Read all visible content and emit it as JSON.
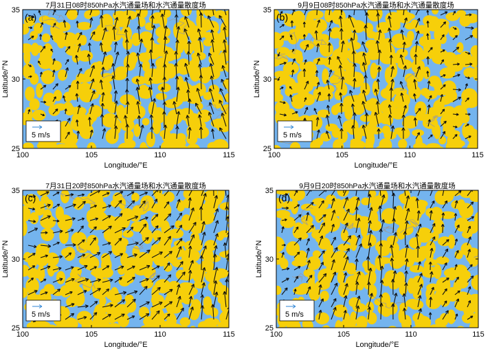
{
  "colors": {
    "land": "#f6cf0a",
    "water": "#74b4ee",
    "arrow": "#101010",
    "boundary": "#9a9a9a",
    "ref_arrow": "#2f86d6"
  },
  "chart_data": [
    {
      "type": "quiver",
      "panel_label": "(a)",
      "title": "7月31日08时850hPa水汽通量场和水汽通量散度场",
      "xlabel": "Longitude/°E",
      "ylabel": "Latitude/°N",
      "xlim": [
        100,
        115
      ],
      "ylim": [
        25,
        35
      ],
      "xticks": [
        100,
        105,
        110,
        115
      ],
      "yticks": [
        25,
        30,
        35
      ],
      "reference_vector": "5 m/s",
      "seed": 11,
      "flow": [
        {
          "x": 100,
          "u": 0.15,
          "v": 0.0
        },
        {
          "x": 106,
          "u": 0.1,
          "v": 0.9
        },
        {
          "x": 111,
          "u": 0.0,
          "v": 1.2
        },
        {
          "x": 113.5,
          "u": -0.35,
          "v": 1.0
        }
      ]
    },
    {
      "type": "quiver",
      "panel_label": "(b)",
      "title": "9月9日08时850hPa水汽通量场和水汽通量散度场",
      "xlabel": "Longitude/°E",
      "ylabel": "Latitude/°N",
      "xlim": [
        100,
        115
      ],
      "ylim": [
        25,
        35
      ],
      "xticks": [
        100,
        105,
        110,
        115
      ],
      "yticks": [
        25,
        30,
        35
      ],
      "reference_vector": "5 m/s",
      "seed": 23,
      "flow": [
        {
          "x": 100,
          "u": 0.2,
          "v": 0.0
        },
        {
          "x": 106.5,
          "u": -0.2,
          "v": 1.1
        },
        {
          "x": 109,
          "u": 0.0,
          "v": 0.9
        },
        {
          "x": 113,
          "u": 0.35,
          "v": 0.15
        }
      ]
    },
    {
      "type": "quiver",
      "panel_label": "(c)",
      "title": "7月31日20时850hPa水汽通量场和水汽通量散度场",
      "xlabel": "Longitude/°E",
      "ylabel": "Latitude/°N",
      "xlim": [
        100,
        115
      ],
      "ylim": [
        25,
        35
      ],
      "xticks": [
        100,
        105,
        110,
        115
      ],
      "yticks": [
        25,
        30,
        35
      ],
      "reference_vector": "5 m/s",
      "seed": 37,
      "flow": [
        {
          "x": 100,
          "u": 0.5,
          "v": 0.1
        },
        {
          "x": 106,
          "u": 0.7,
          "v": 0.4
        },
        {
          "x": 110,
          "u": 0.6,
          "v": 0.5
        },
        {
          "x": 114,
          "u": 0.1,
          "v": 1.2
        }
      ]
    },
    {
      "type": "quiver",
      "panel_label": "(d)",
      "title": "9月9日20时850hPa水汽通量场和水汽通量散度场",
      "xlabel": "Longitude/°E",
      "ylabel": "Latitude/°N",
      "xlim": [
        100,
        115
      ],
      "ylim": [
        25,
        35
      ],
      "xticks": [
        100,
        105,
        110,
        115
      ],
      "yticks": [
        25,
        30,
        35
      ],
      "reference_vector": "5 m/s",
      "seed": 53,
      "flow": [
        {
          "x": 100,
          "u": 0.3,
          "v": 0.2
        },
        {
          "x": 105,
          "u": 0.4,
          "v": 0.9
        },
        {
          "x": 108,
          "u": 0.0,
          "v": 1.3
        },
        {
          "x": 113,
          "u": 0.3,
          "v": 0.4
        }
      ]
    }
  ]
}
